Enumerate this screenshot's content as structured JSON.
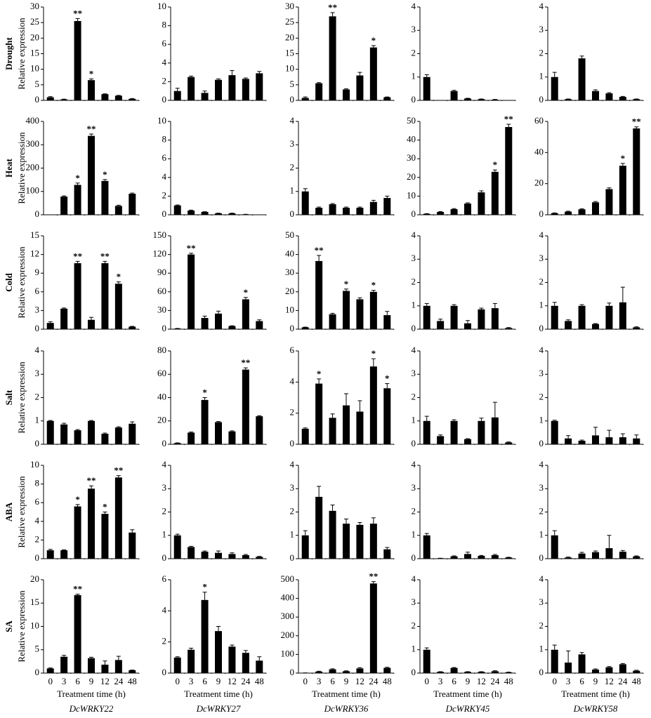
{
  "rows": [
    "Drought",
    "Heat",
    "Cold",
    "Salt",
    "ABA",
    "SA"
  ],
  "columns": [
    "DcWRKY22",
    "DcWRKY27",
    "DcWRKY36",
    "DcWRKY45",
    "DcWRKY58"
  ],
  "chart_data": [
    {
      "type": "bar",
      "ylabel": "Relative expression",
      "ylim": [
        0,
        30
      ],
      "yticks": [
        0,
        5,
        10,
        15,
        20,
        25,
        30
      ],
      "values": [
        1,
        0.3,
        25.5,
        6.5,
        2,
        1.5,
        0.5
      ],
      "errors": [
        0.2,
        0.1,
        0.8,
        0.4,
        0.1,
        0.1,
        0.1
      ],
      "annotations": [
        null,
        null,
        "**",
        "*",
        null,
        null,
        null
      ]
    },
    {
      "type": "bar",
      "ylim": [
        0,
        10
      ],
      "yticks": [
        0,
        2,
        4,
        6,
        8,
        10
      ],
      "values": [
        1,
        2.5,
        0.8,
        2.2,
        2.7,
        2.3,
        2.9
      ],
      "errors": [
        0.3,
        0.1,
        0.2,
        0.1,
        0.5,
        0.1,
        0.2
      ]
    },
    {
      "type": "bar",
      "ylim": [
        0,
        30
      ],
      "yticks": [
        0,
        5,
        10,
        15,
        20,
        25,
        30
      ],
      "values": [
        0.8,
        5.5,
        27,
        3.5,
        8,
        17,
        1
      ],
      "errors": [
        0.3,
        0.2,
        1.2,
        0.2,
        1,
        0.6,
        0.1
      ],
      "annotations": [
        null,
        null,
        "**",
        null,
        null,
        "*",
        null
      ]
    },
    {
      "type": "bar",
      "ylim": [
        0,
        4
      ],
      "yticks": [
        0,
        1,
        2,
        3,
        4
      ],
      "values": [
        1,
        0,
        0.4,
        0.08,
        0.05,
        0.03,
        0
      ],
      "errors": [
        0.1,
        0,
        0.03,
        0.01,
        0.01,
        0.01,
        0
      ]
    },
    {
      "type": "bar",
      "ylim": [
        0,
        4
      ],
      "yticks": [
        0,
        1,
        2,
        3,
        4
      ],
      "values": [
        1,
        0.05,
        1.8,
        0.4,
        0.3,
        0.15,
        0.05
      ],
      "errors": [
        0.2,
        0.01,
        0.1,
        0.05,
        0.03,
        0.02,
        0.01
      ]
    },
    {
      "type": "bar",
      "ylabel": "Relative expression",
      "ylim": [
        0,
        400
      ],
      "yticks": [
        0,
        100,
        200,
        300,
        400
      ],
      "values": [
        0,
        78,
        128,
        338,
        145,
        38,
        90
      ],
      "errors": [
        0,
        3,
        8,
        8,
        6,
        3,
        3
      ],
      "annotations": [
        null,
        null,
        "*",
        "**",
        "*",
        null,
        null
      ]
    },
    {
      "type": "bar",
      "ylim": [
        0,
        10
      ],
      "yticks": [
        0,
        2,
        4,
        6,
        8,
        10
      ],
      "values": [
        1,
        0.45,
        0.3,
        0.15,
        0.15,
        0.05,
        0
      ],
      "errors": [
        0.05,
        0.05,
        0.03,
        0.02,
        0.02,
        0,
        0
      ]
    },
    {
      "type": "bar",
      "ylim": [
        0,
        4
      ],
      "yticks": [
        0,
        1,
        2,
        3,
        4
      ],
      "values": [
        1,
        0.3,
        0.45,
        0.3,
        0.3,
        0.55,
        0.72
      ],
      "errors": [
        0.12,
        0.03,
        0.03,
        0.03,
        0.03,
        0.07,
        0.08
      ]
    },
    {
      "type": "bar",
      "ylim": [
        0,
        50
      ],
      "yticks": [
        0,
        10,
        20,
        30,
        40,
        50
      ],
      "values": [
        0.5,
        1.5,
        3,
        6,
        12,
        23,
        47
      ],
      "errors": [
        0.1,
        0.2,
        0.3,
        0.4,
        0.8,
        1,
        1.5
      ],
      "annotations": [
        null,
        null,
        null,
        null,
        null,
        "*",
        "**"
      ]
    },
    {
      "type": "bar",
      "ylim": [
        0,
        60
      ],
      "yticks": [
        0,
        20,
        40,
        60
      ],
      "values": [
        1,
        2,
        3.5,
        8,
        16.5,
        31.5,
        55.5
      ],
      "errors": [
        0.2,
        0.3,
        0.3,
        0.5,
        0.8,
        1.5,
        1
      ],
      "annotations": [
        null,
        null,
        null,
        null,
        null,
        "*",
        "**"
      ]
    },
    {
      "type": "bar",
      "ylabel": "Relative expression",
      "ylim": [
        0,
        15
      ],
      "yticks": [
        0,
        3,
        6,
        9,
        12,
        15
      ],
      "values": [
        1,
        3.3,
        10.6,
        1.5,
        10.6,
        7.3,
        0.4
      ],
      "errors": [
        0.2,
        0.1,
        0.3,
        0.4,
        0.3,
        0.3,
        0.05
      ],
      "annotations": [
        null,
        null,
        "**",
        null,
        "**",
        "*",
        null
      ]
    },
    {
      "type": "bar",
      "ylim": [
        0,
        150
      ],
      "yticks": [
        0,
        30,
        60,
        90,
        120,
        150
      ],
      "values": [
        1,
        120,
        18,
        25,
        5,
        48,
        13
      ],
      "errors": [
        0.2,
        2,
        3,
        4,
        0.5,
        3,
        2
      ],
      "annotations": [
        null,
        "**",
        null,
        null,
        null,
        "*",
        null
      ]
    },
    {
      "type": "bar",
      "ylim": [
        0,
        50
      ],
      "yticks": [
        0,
        10,
        20,
        30,
        40,
        50
      ],
      "values": [
        1,
        36.5,
        8,
        20.5,
        16,
        20,
        7.5
      ],
      "errors": [
        0.1,
        3,
        0.5,
        1,
        0.8,
        0.8,
        2
      ],
      "annotations": [
        null,
        "**",
        null,
        "*",
        null,
        "*",
        null
      ]
    },
    {
      "type": "bar",
      "ylim": [
        0,
        4
      ],
      "yticks": [
        0,
        1,
        2,
        3,
        4
      ],
      "values": [
        1,
        0.35,
        1,
        0.25,
        0.85,
        0.9,
        0.05
      ],
      "errors": [
        0.1,
        0.08,
        0.05,
        0.12,
        0.05,
        0.2,
        0.02
      ]
    },
    {
      "type": "bar",
      "ylim": [
        0,
        4
      ],
      "yticks": [
        0,
        1,
        2,
        3,
        4
      ],
      "values": [
        1,
        0.35,
        1,
        0.22,
        1,
        1.15,
        0.08
      ],
      "errors": [
        0.15,
        0.05,
        0.05,
        0.02,
        0.12,
        0.65,
        0.02
      ]
    },
    {
      "type": "bar",
      "ylabel": "Relative expression",
      "ylim": [
        0,
        4
      ],
      "yticks": [
        0,
        1,
        2,
        3,
        4
      ],
      "values": [
        1,
        0.85,
        0.6,
        1,
        0.45,
        0.72,
        0.88
      ],
      "errors": [
        0.02,
        0.05,
        0.03,
        0.02,
        0.03,
        0.03,
        0.08
      ]
    },
    {
      "type": "bar",
      "ylim": [
        0,
        80
      ],
      "yticks": [
        0,
        20,
        40,
        60,
        80
      ],
      "values": [
        1,
        10,
        38,
        19,
        11,
        64,
        24
      ],
      "errors": [
        0.2,
        0.5,
        2,
        0.5,
        0.5,
        1.5,
        0.5
      ],
      "annotations": [
        null,
        null,
        "*",
        null,
        null,
        "**",
        null
      ]
    },
    {
      "type": "bar",
      "ylim": [
        0,
        6
      ],
      "yticks": [
        0,
        2,
        4,
        6
      ],
      "values": [
        1,
        3.9,
        1.7,
        2.5,
        2.1,
        5,
        3.6
      ],
      "errors": [
        0.05,
        0.3,
        0.25,
        0.75,
        0.7,
        0.5,
        0.3
      ],
      "annotations": [
        null,
        "*",
        null,
        null,
        null,
        "*",
        "*"
      ]
    },
    {
      "type": "bar",
      "ylim": [
        0,
        4
      ],
      "yticks": [
        0,
        1,
        2,
        3,
        4
      ],
      "values": [
        1,
        0.35,
        1,
        0.22,
        1,
        1.15,
        0.08
      ],
      "errors": [
        0.2,
        0.05,
        0.05,
        0.02,
        0.12,
        0.65,
        0.02
      ]
    },
    {
      "type": "bar",
      "ylim": [
        0,
        4
      ],
      "yticks": [
        0,
        1,
        2,
        3,
        4
      ],
      "values": [
        1,
        0.25,
        0.15,
        0.38,
        0.3,
        0.3,
        0.25
      ],
      "errors": [
        0.03,
        0.12,
        0.03,
        0.35,
        0.3,
        0.15,
        0.15
      ]
    },
    {
      "type": "bar",
      "ylabel": "Relative expression",
      "ylim": [
        0,
        10
      ],
      "yticks": [
        0,
        2,
        4,
        6,
        8,
        10
      ],
      "values": [
        0.9,
        0.9,
        5.6,
        7.5,
        4.8,
        8.7,
        2.8
      ],
      "errors": [
        0.1,
        0.05,
        0.2,
        0.3,
        0.2,
        0.2,
        0.3
      ],
      "annotations": [
        null,
        null,
        "*",
        "**",
        "*",
        "**",
        null
      ]
    },
    {
      "type": "bar",
      "ylim": [
        0,
        4
      ],
      "yticks": [
        0,
        1,
        2,
        3,
        4
      ],
      "values": [
        1,
        0.5,
        0.3,
        0.25,
        0.2,
        0.15,
        0.08
      ],
      "errors": [
        0.05,
        0.03,
        0.03,
        0.08,
        0.05,
        0.03,
        0.02
      ]
    },
    {
      "type": "bar",
      "ylim": [
        0,
        4
      ],
      "yticks": [
        0,
        1,
        2,
        3,
        4
      ],
      "values": [
        1,
        2.65,
        2.05,
        1.5,
        1.45,
        1.5,
        0.4
      ],
      "errors": [
        0.2,
        0.45,
        0.25,
        0.2,
        0.1,
        0.25,
        0.08
      ]
    },
    {
      "type": "bar",
      "ylim": [
        0,
        4
      ],
      "yticks": [
        0,
        1,
        2,
        3,
        4
      ],
      "values": [
        1,
        0.02,
        0.1,
        0.2,
        0.12,
        0.15,
        0.05
      ],
      "errors": [
        0.08,
        0,
        0.02,
        0.08,
        0.02,
        0.03,
        0.01
      ]
    },
    {
      "type": "bar",
      "ylim": [
        0,
        4
      ],
      "yticks": [
        0,
        1,
        2,
        3,
        4
      ],
      "values": [
        1,
        0.05,
        0.22,
        0.28,
        0.45,
        0.3,
        0.1
      ],
      "errors": [
        0.2,
        0.02,
        0.05,
        0.05,
        0.55,
        0.05,
        0.02
      ]
    },
    {
      "type": "bar",
      "ylabel": "Relative expression",
      "xlabel": "Treatment time (h)",
      "categories": [
        "0",
        "3",
        "6",
        "9",
        "12",
        "24",
        "48"
      ],
      "ylim": [
        0,
        20
      ],
      "yticks": [
        0,
        5,
        10,
        15,
        20
      ],
      "values": [
        1,
        3.5,
        16.7,
        3.2,
        1.8,
        2.8,
        0.6
      ],
      "errors": [
        0.1,
        0.3,
        0.2,
        0.2,
        0.8,
        0.8,
        0.05
      ],
      "annotations": [
        null,
        null,
        "**",
        null,
        null,
        null,
        null
      ]
    },
    {
      "type": "bar",
      "xlabel": "Treatment time (h)",
      "categories": [
        "0",
        "3",
        "6",
        "9",
        "12",
        "24",
        "48"
      ],
      "ylim": [
        0,
        6
      ],
      "yticks": [
        0,
        2,
        4,
        6
      ],
      "values": [
        1,
        1.5,
        4.7,
        2.7,
        1.7,
        1.3,
        0.8
      ],
      "errors": [
        0.05,
        0.1,
        0.5,
        0.3,
        0.1,
        0.15,
        0.25
      ],
      "annotations": [
        null,
        null,
        "*",
        null,
        null,
        null,
        null
      ]
    },
    {
      "type": "bar",
      "xlabel": "Treatment time (h)",
      "categories": [
        "0",
        "3",
        "6",
        "9",
        "12",
        "24",
        "48"
      ],
      "ylim": [
        0,
        500
      ],
      "yticks": [
        0,
        100,
        200,
        300,
        400,
        500
      ],
      "values": [
        1,
        8,
        20,
        10,
        25,
        480,
        28
      ],
      "errors": [
        0.1,
        2,
        3,
        2,
        4,
        10,
        3
      ],
      "annotations": [
        null,
        null,
        null,
        null,
        null,
        "**",
        null
      ]
    },
    {
      "type": "bar",
      "xlabel": "Treatment time (h)",
      "categories": [
        "0",
        "3",
        "6",
        "9",
        "12",
        "24",
        "48"
      ],
      "ylim": [
        0,
        4
      ],
      "yticks": [
        0,
        1,
        2,
        3,
        4
      ],
      "values": [
        1,
        0.05,
        0.22,
        0.05,
        0.05,
        0.08,
        0.03
      ],
      "errors": [
        0.08,
        0.01,
        0.02,
        0.01,
        0.01,
        0.02,
        0.01
      ]
    },
    {
      "type": "bar",
      "xlabel": "Treatment time (h)",
      "categories": [
        "0",
        "3",
        "6",
        "9",
        "12",
        "24",
        "48"
      ],
      "ylim": [
        0,
        4
      ],
      "yticks": [
        0,
        1,
        2,
        3,
        4
      ],
      "values": [
        1,
        0.45,
        0.8,
        0.15,
        0.25,
        0.38,
        0.1
      ],
      "errors": [
        0.2,
        0.5,
        0.08,
        0.03,
        0.03,
        0.03,
        0.02
      ]
    }
  ]
}
